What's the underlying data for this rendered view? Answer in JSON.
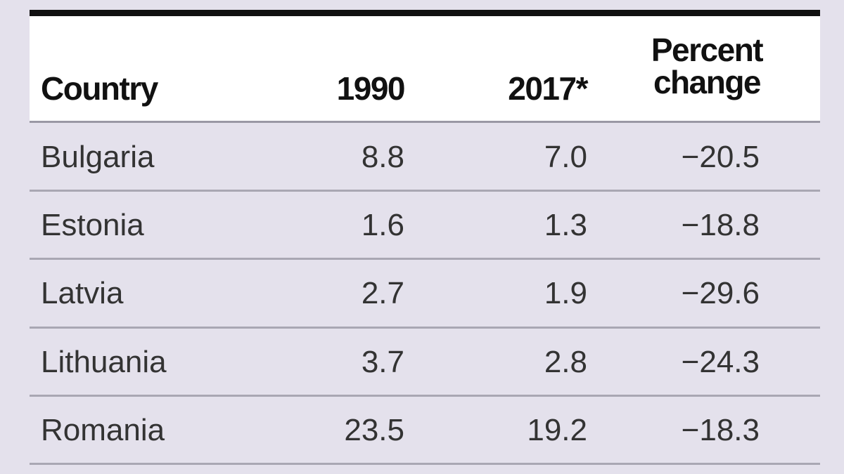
{
  "table": {
    "header": [
      "Country",
      "1990",
      "2017*",
      "Percent change"
    ],
    "rows": [
      [
        "Bulgaria",
        "8.8",
        "7.0",
        "−20.5"
      ],
      [
        "Estonia",
        "1.6",
        "1.3",
        "−18.8"
      ],
      [
        "Latvia",
        "2.7",
        "1.9",
        "−29.6"
      ],
      [
        "Lithuania",
        "3.7",
        "2.8",
        "−24.3"
      ],
      [
        "Romania",
        "23.5",
        "19.2",
        "−18.3"
      ]
    ]
  }
}
